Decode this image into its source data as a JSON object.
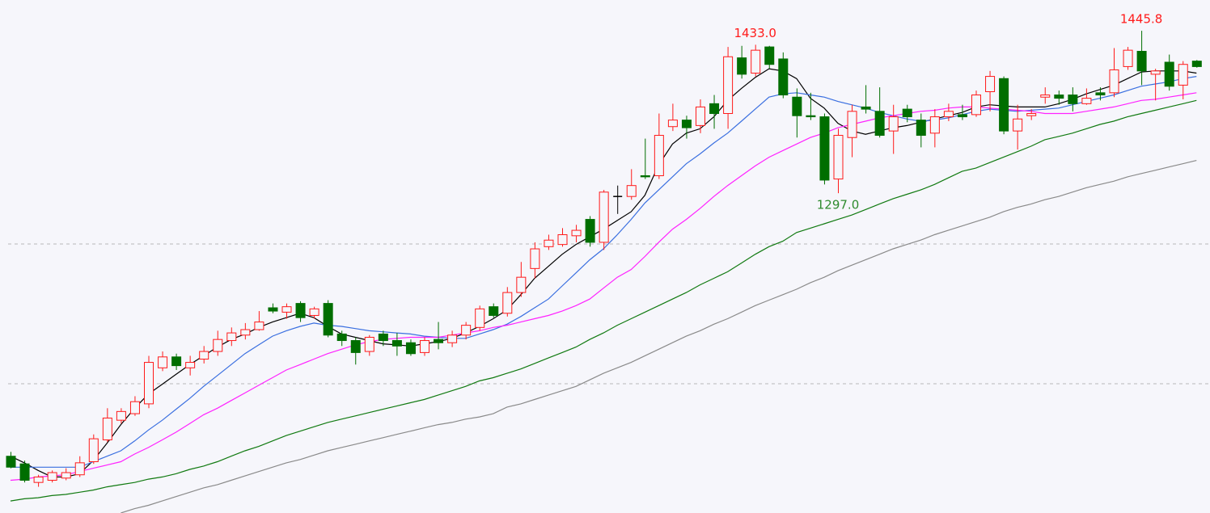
{
  "chart_data": {
    "type": "candlestick",
    "ylim": [
      1004,
      1474
    ],
    "up_color": "#ff1a1a",
    "down_color": "#006e00",
    "flat_color": "#000000",
    "candles": {
      "open": [
        1056,
        1049,
        1032,
        1034,
        1036,
        1039,
        1051,
        1071,
        1089,
        1095,
        1104,
        1137,
        1147,
        1137,
        1145,
        1152,
        1162,
        1167,
        1172,
        1192,
        1188,
        1196,
        1185,
        1196,
        1168,
        1162,
        1152,
        1168,
        1162,
        1160,
        1151,
        1163,
        1160,
        1167,
        1174,
        1193,
        1187,
        1206,
        1228,
        1248,
        1250,
        1258,
        1273,
        1252,
        1294,
        1294,
        1313,
        1313,
        1358,
        1364,
        1359,
        1379,
        1370,
        1421,
        1407,
        1431,
        1420,
        1385,
        1368,
        1367,
        1310,
        1348,
        1376,
        1372,
        1354,
        1374,
        1364,
        1352,
        1367,
        1369,
        1369,
        1390,
        1402,
        1354,
        1368,
        1385,
        1387,
        1387,
        1379,
        1389,
        1389,
        1413,
        1427,
        1406,
        1417,
        1396,
        1418
      ],
      "high": [
        1060,
        1052,
        1039,
        1043,
        1045,
        1056,
        1076,
        1100,
        1100,
        1111,
        1148,
        1152,
        1150,
        1148,
        1157,
        1171,
        1174,
        1178,
        1189,
        1196,
        1196,
        1198,
        1193,
        1199,
        1171,
        1165,
        1167,
        1171,
        1169,
        1163,
        1165,
        1179,
        1171,
        1179,
        1194,
        1196,
        1211,
        1234,
        1252,
        1259,
        1265,
        1268,
        1276,
        1300,
        1304,
        1319,
        1347,
        1370,
        1379,
        1368,
        1383,
        1387,
        1431,
        1432,
        1433,
        1432,
        1426,
        1393,
        1389,
        1370,
        1356,
        1378,
        1396,
        1394,
        1378,
        1378,
        1370,
        1374,
        1379,
        1378,
        1391,
        1409,
        1404,
        1378,
        1374,
        1394,
        1391,
        1394,
        1393,
        1394,
        1430,
        1431,
        1445.8,
        1411,
        1424,
        1418,
        1419
      ],
      "low": [
        1045,
        1032,
        1028,
        1032,
        1034,
        1037,
        1049,
        1069,
        1086,
        1093,
        1100,
        1134,
        1135,
        1130,
        1141,
        1148,
        1157,
        1163,
        1171,
        1187,
        1182,
        1179,
        1182,
        1165,
        1157,
        1140,
        1148,
        1157,
        1148,
        1148,
        1148,
        1154,
        1156,
        1163,
        1171,
        1183,
        1184,
        1202,
        1219,
        1245,
        1248,
        1252,
        1248,
        1245,
        1278,
        1291,
        1310,
        1310,
        1354,
        1347,
        1352,
        1356,
        1356,
        1402,
        1404,
        1411,
        1384,
        1348,
        1364,
        1305,
        1297,
        1330,
        1370,
        1348,
        1333,
        1362,
        1339,
        1339,
        1363,
        1364,
        1367,
        1372,
        1351,
        1337,
        1364,
        1379,
        1378,
        1372,
        1378,
        1382,
        1385,
        1410,
        1396,
        1382,
        1391,
        1383,
        1412
      ],
      "close": [
        1046,
        1034,
        1037,
        1041,
        1041,
        1050,
        1072,
        1091,
        1097,
        1106,
        1142,
        1147,
        1139,
        1142,
        1152,
        1163,
        1169,
        1172,
        1179,
        1189,
        1193,
        1183,
        1191,
        1167,
        1162,
        1151,
        1165,
        1162,
        1157,
        1150,
        1162,
        1160,
        1167,
        1176,
        1191,
        1185,
        1206,
        1220,
        1246,
        1254,
        1259,
        1263,
        1252,
        1298,
        1294,
        1304,
        1312,
        1350,
        1364,
        1357,
        1376,
        1370,
        1422,
        1406,
        1428,
        1415,
        1387,
        1368,
        1367,
        1309,
        1350,
        1372,
        1374,
        1350,
        1367,
        1367,
        1350,
        1367,
        1372,
        1367,
        1387,
        1404,
        1354,
        1365,
        1370,
        1387,
        1384,
        1379,
        1384,
        1387,
        1410,
        1428,
        1409,
        1409,
        1395,
        1415,
        1413
      ]
    },
    "series": [
      {
        "color": "#000000",
        "values": [
          1056,
          1050,
          1043,
          1037,
          1037,
          1040,
          1052,
          1068,
          1085,
          1100,
          1113,
          1122,
          1131,
          1140,
          1148,
          1156,
          1163,
          1168,
          1174,
          1179,
          1183,
          1187,
          1183,
          1175,
          1168,
          1165,
          1162,
          1159,
          1158,
          1157,
          1159,
          1161,
          1164,
          1169,
          1175,
          1182,
          1190,
          1204,
          1219,
          1230,
          1241,
          1250,
          1257,
          1264,
          1272,
          1280,
          1295,
          1323,
          1342,
          1352,
          1356,
          1367,
          1382,
          1393,
          1403,
          1411,
          1409,
          1402,
          1384,
          1375,
          1361,
          1354,
          1351,
          1354,
          1357,
          1359,
          1362,
          1365,
          1368,
          1371,
          1376,
          1378,
          1377,
          1376,
          1376,
          1376,
          1379,
          1383,
          1388,
          1392,
          1396,
          1402,
          1408,
          1409,
          1409,
          1409,
          1407
        ]
      },
      {
        "color": "#3a6fe0",
        "values": [
          1046,
          1046,
          1046,
          1046,
          1046,
          1046,
          1051,
          1056,
          1061,
          1070,
          1080,
          1089,
          1099,
          1109,
          1120,
          1130,
          1140,
          1150,
          1158,
          1166,
          1171,
          1175,
          1178,
          1176,
          1175,
          1173,
          1171,
          1170,
          1169,
          1168,
          1166,
          1165,
          1164,
          1164,
          1168,
          1172,
          1177,
          1184,
          1192,
          1200,
          1212,
          1224,
          1236,
          1246,
          1259,
          1273,
          1288,
          1300,
          1312,
          1324,
          1333,
          1343,
          1352,
          1363,
          1374,
          1385,
          1388,
          1389,
          1387,
          1385,
          1381,
          1378,
          1375,
          1371,
          1368,
          1365,
          1363,
          1364,
          1366,
          1369,
          1372,
          1374,
          1373,
          1372,
          1373,
          1374,
          1375,
          1378,
          1381,
          1384,
          1387,
          1391,
          1395,
          1397,
          1399,
          1402,
          1404
        ]
      },
      {
        "color": "#ff22ff",
        "values": [
          1034,
          1035,
          1037,
          1038,
          1039,
          1042,
          1045,
          1048,
          1051,
          1058,
          1064,
          1071,
          1078,
          1086,
          1094,
          1100,
          1107,
          1114,
          1121,
          1128,
          1135,
          1140,
          1145,
          1150,
          1154,
          1158,
          1161,
          1163,
          1164,
          1165,
          1165,
          1165,
          1167,
          1169,
          1171,
          1174,
          1176,
          1179,
          1182,
          1185,
          1189,
          1194,
          1200,
          1210,
          1220,
          1227,
          1239,
          1252,
          1264,
          1273,
          1283,
          1294,
          1304,
          1313,
          1322,
          1330,
          1336,
          1342,
          1348,
          1352,
          1357,
          1360,
          1363,
          1366,
          1368,
          1370,
          1372,
          1373,
          1375,
          1376,
          1376,
          1375,
          1374,
          1373,
          1372,
          1370,
          1370,
          1370,
          1372,
          1374,
          1376,
          1379,
          1382,
          1383,
          1385,
          1387,
          1389
        ]
      },
      {
        "color": "#117a11",
        "values": [
          1015,
          1017,
          1018,
          1020,
          1021,
          1023,
          1025,
          1028,
          1030,
          1032,
          1035,
          1037,
          1040,
          1044,
          1047,
          1051,
          1056,
          1061,
          1065,
          1070,
          1075,
          1079,
          1083,
          1087,
          1090,
          1093,
          1096,
          1099,
          1102,
          1105,
          1108,
          1112,
          1116,
          1120,
          1125,
          1128,
          1132,
          1136,
          1141,
          1146,
          1151,
          1156,
          1163,
          1169,
          1176,
          1182,
          1188,
          1194,
          1200,
          1206,
          1213,
          1219,
          1225,
          1233,
          1241,
          1248,
          1253,
          1261,
          1265,
          1269,
          1273,
          1277,
          1282,
          1287,
          1292,
          1296,
          1300,
          1305,
          1311,
          1317,
          1320,
          1325,
          1330,
          1335,
          1340,
          1346,
          1349,
          1352,
          1356,
          1360,
          1363,
          1367,
          1370,
          1373,
          1376,
          1379,
          1382
        ]
      },
      {
        "color": "#8a8a8a",
        "values": [
          null,
          null,
          null,
          null,
          null,
          null,
          null,
          null,
          1004,
          1008,
          1011,
          1015,
          1019,
          1023,
          1027,
          1030,
          1034,
          1038,
          1042,
          1046,
          1050,
          1053,
          1057,
          1061,
          1064,
          1067,
          1070,
          1073,
          1076,
          1079,
          1082,
          1085,
          1087,
          1090,
          1092,
          1095,
          1101,
          1104,
          1108,
          1112,
          1116,
          1120,
          1126,
          1132,
          1137,
          1142,
          1148,
          1154,
          1160,
          1166,
          1171,
          1177,
          1182,
          1188,
          1194,
          1199,
          1204,
          1209,
          1215,
          1220,
          1226,
          1231,
          1236,
          1241,
          1246,
          1250,
          1254,
          1259,
          1263,
          1267,
          1271,
          1275,
          1280,
          1284,
          1287,
          1291,
          1294,
          1298,
          1302,
          1305,
          1308,
          1312,
          1315,
          1318,
          1321,
          1324,
          1327
        ]
      }
    ],
    "annotations": [
      {
        "label": "1433.0",
        "value": 1433,
        "color": "#ff1a1a"
      },
      {
        "label": "1445.8",
        "value": 1445.8,
        "color": "#ff1a1a"
      },
      {
        "label": "1297.0",
        "value": 1297,
        "color": "#2e8b2e"
      }
    ]
  }
}
